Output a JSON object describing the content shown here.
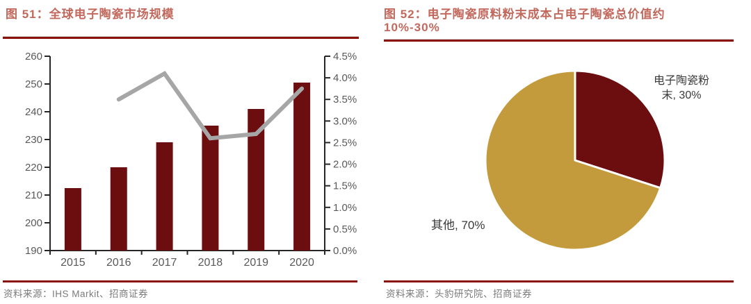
{
  "colors": {
    "maroon": "#6C0D10",
    "gold": "#C49B3C",
    "title_red": "#C2685C",
    "divider_red": "#8A100B",
    "axis_line": "#262626",
    "axis_text": "#595959",
    "line_gray": "#A6A6A6",
    "footer_gray": "#7A7A7A",
    "pie_label_text": "#3A3A3A"
  },
  "figure51": {
    "title": "图 51：全球电子陶瓷市场规模",
    "source": "资料来源：IHS Markit、招商证券",
    "chart_data": {
      "type": "bar+line",
      "categories": [
        "2015",
        "2016",
        "2017",
        "2018",
        "2019",
        "2020"
      ],
      "series": [
        {
          "type": "bar",
          "axis": "left",
          "color": "#6C0D10",
          "values": [
            212.5,
            220,
            229,
            235,
            241,
            250.5
          ]
        },
        {
          "type": "line",
          "axis": "right",
          "color": "#A6A6A6",
          "unit": "%",
          "values": [
            null,
            3.5,
            4.1,
            2.6,
            2.7,
            3.75
          ]
        }
      ],
      "left_axis": {
        "min": 190,
        "max": 260,
        "tick_labels": [
          "190",
          "200",
          "210",
          "220",
          "230",
          "240",
          "250",
          "260"
        ]
      },
      "right_axis": {
        "min": 0,
        "max": 4.5,
        "tick_labels": [
          "0.0%",
          "0.5%",
          "1.0%",
          "1.5%",
          "2.0%",
          "2.5%",
          "3.0%",
          "3.5%",
          "4.0%",
          "4.5%"
        ]
      },
      "grid": false,
      "legend": false
    }
  },
  "figure52": {
    "title_line1": "图 52：电子陶瓷原料粉末成本占电子陶瓷总价值约",
    "title_line2": "10%-30%",
    "source": "资料来源：头豹研究院、招商证券",
    "chart_data": {
      "type": "pie",
      "start": "top",
      "direction": "clockwise",
      "slices": [
        {
          "label": "电子陶瓷粉末",
          "value": 30,
          "color": "#6C0D10",
          "display_text": "电子陶瓷粉末, 30%"
        },
        {
          "label": "其他",
          "value": 70,
          "color": "#C49B3C",
          "display_text": "其他, 70%"
        }
      ]
    }
  }
}
